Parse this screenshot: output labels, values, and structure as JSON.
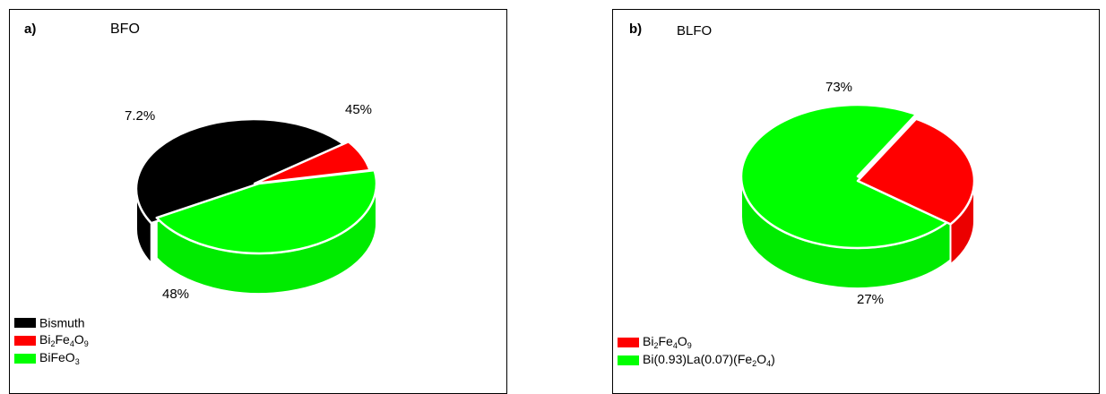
{
  "chart_data": [
    {
      "type": "pie",
      "panel_label": "a)",
      "title": "BFO",
      "slices": [
        {
          "name": "Bismuth",
          "value": 48,
          "label": "48%",
          "color": "#000000"
        },
        {
          "name": "Bi2Fe4O9",
          "value": 7.2,
          "label": "7.2%",
          "color": "#ff0000"
        },
        {
          "name": "BiFeO3",
          "value": 45,
          "label": "45%",
          "color": "#00ff00"
        }
      ],
      "legend": [
        {
          "text": "Bismuth",
          "color": "#000000",
          "parts": [
            {
              "t": "Bismuth",
              "sub": false
            }
          ]
        },
        {
          "text": "Bi2Fe4O9",
          "color": "#ff0000",
          "parts": [
            {
              "t": "Bi",
              "sub": false
            },
            {
              "t": "2",
              "sub": true
            },
            {
              "t": "Fe",
              "sub": false
            },
            {
              "t": "4",
              "sub": true
            },
            {
              "t": "O",
              "sub": false
            },
            {
              "t": "9",
              "sub": true
            }
          ]
        },
        {
          "text": "BiFeO3",
          "color": "#00ff00",
          "parts": [
            {
              "t": "BiFeO",
              "sub": false
            },
            {
              "t": "3",
              "sub": true
            }
          ]
        }
      ],
      "legend_position": "bottom-left",
      "three_d": true
    },
    {
      "type": "pie",
      "panel_label": "b)",
      "title": "BLFO",
      "slices": [
        {
          "name": "Bi(0.93)La(0.07)(Fe2O4)",
          "value": 73,
          "label": "73%",
          "color": "#00ff00"
        },
        {
          "name": "Bi2Fe4O9",
          "value": 27,
          "label": "27%",
          "color": "#ff0000"
        }
      ],
      "legend": [
        {
          "text": "Bi2Fe4O9",
          "color": "#ff0000",
          "parts": [
            {
              "t": "Bi",
              "sub": false
            },
            {
              "t": "2",
              "sub": true
            },
            {
              "t": "Fe",
              "sub": false
            },
            {
              "t": "4",
              "sub": true
            },
            {
              "t": "O",
              "sub": false
            },
            {
              "t": "9",
              "sub": true
            }
          ]
        },
        {
          "text": "Bi(0.93)La(0.07)(Fe2O4)",
          "color": "#00ff00",
          "parts": [
            {
              "t": "Bi(0.93)La(0.07)(Fe",
              "sub": false
            },
            {
              "t": "2",
              "sub": true
            },
            {
              "t": "O",
              "sub": false
            },
            {
              "t": "4",
              "sub": true
            },
            {
              "t": ")",
              "sub": false
            }
          ]
        }
      ],
      "legend_position": "bottom-left",
      "three_d": true
    }
  ]
}
